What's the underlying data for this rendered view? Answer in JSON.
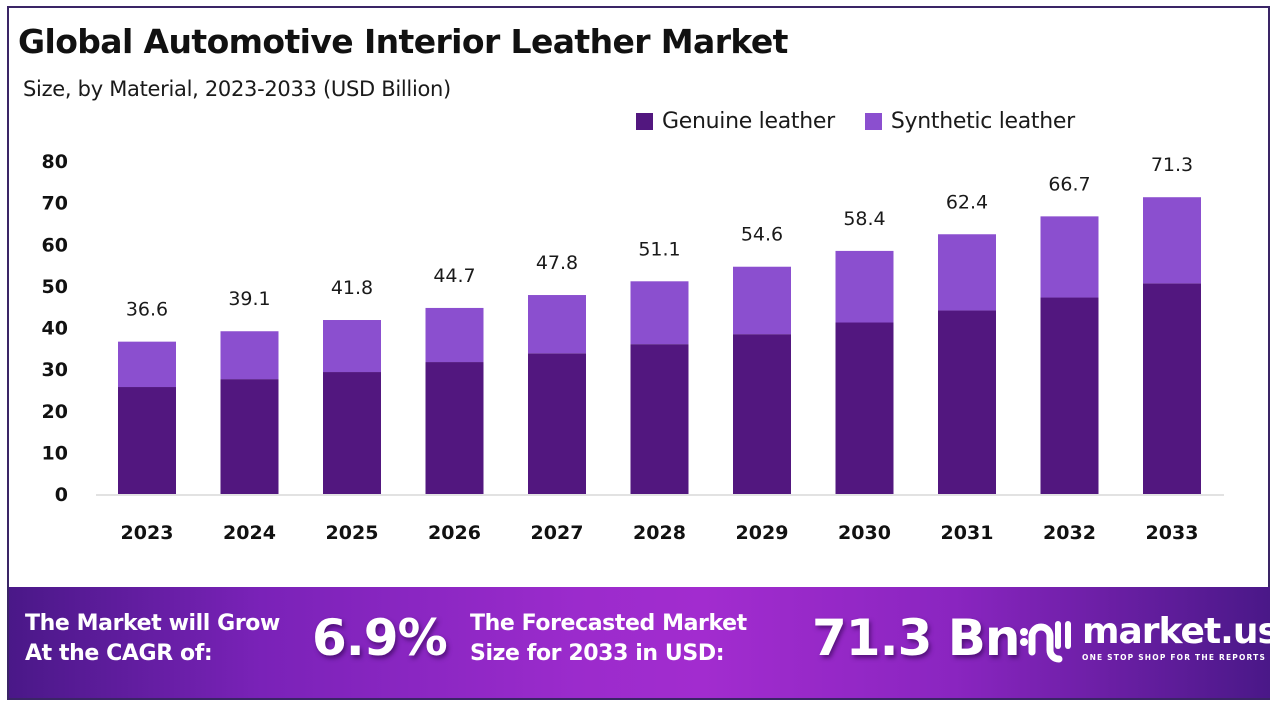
{
  "header": {
    "title": "Global Automotive Interior Leather Market",
    "subtitle": "Size, by Material, 2023-2033 (USD Billion)"
  },
  "colors": {
    "genuine": "#52177f",
    "synthetic": "#8b4fcf",
    "frame": "#3a2566",
    "banner_dark": "#4a1888",
    "banner_light": "#a22ccf"
  },
  "chart_data": {
    "type": "bar",
    "stacked": true,
    "title": "Global Automotive Interior Leather Market",
    "subtitle": "Size, by Material, 2023-2033 (USD Billion)",
    "xlabel": "",
    "ylabel": "",
    "ylim": [
      0,
      80
    ],
    "yticks": [
      0,
      10,
      20,
      30,
      40,
      50,
      60,
      70,
      80
    ],
    "grid": false,
    "legend_position": "top-right",
    "categories": [
      "2023",
      "2024",
      "2025",
      "2026",
      "2027",
      "2028",
      "2029",
      "2030",
      "2031",
      "2032",
      "2033"
    ],
    "series": [
      {
        "name": "Genuine leather",
        "values": [
          25.7,
          27.6,
          29.3,
          31.7,
          33.8,
          36.0,
          38.4,
          41.2,
          44.1,
          47.2,
          50.6
        ]
      },
      {
        "name": "Synthetic leather",
        "values": [
          10.9,
          11.5,
          12.5,
          13.0,
          14.0,
          15.1,
          16.2,
          17.2,
          18.3,
          19.5,
          20.7
        ]
      }
    ],
    "totals": [
      36.6,
      39.1,
      41.8,
      44.7,
      47.8,
      51.1,
      54.6,
      58.4,
      62.4,
      66.7,
      71.3
    ],
    "total_labels": [
      "36.6",
      "39.1",
      "41.8",
      "44.7",
      "47.8",
      "51.1",
      "54.6",
      "58.4",
      "62.4",
      "66.7",
      "71.3"
    ]
  },
  "banner": {
    "cagr_line1": "The Market will Grow",
    "cagr_line2": "At the CAGR of:",
    "cagr_value": "6.9%",
    "forecast_line1": "The Forecasted Market",
    "forecast_line2": "Size for 2033 in USD:",
    "forecast_value": "71.3 Bn",
    "logo_name": "market.us",
    "logo_tagline": "ONE STOP SHOP FOR THE REPORTS",
    "logo_icon": "market-us-logo-icon"
  }
}
